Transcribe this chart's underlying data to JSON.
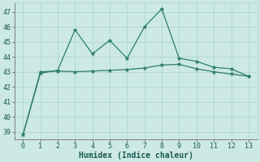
{
  "x": [
    0,
    1,
    2,
    3,
    4,
    5,
    6,
    7,
    8,
    9,
    10,
    11,
    12,
    13
  ],
  "line1_y": [
    38.8,
    42.9,
    43.1,
    45.8,
    44.2,
    45.1,
    43.9,
    46.0,
    47.2,
    43.9,
    43.7,
    43.3,
    43.2,
    42.7
  ],
  "line2_y": [
    38.8,
    43.0,
    43.05,
    43.0,
    43.05,
    43.1,
    43.15,
    43.25,
    43.45,
    43.5,
    43.2,
    43.0,
    42.85,
    42.7
  ],
  "line_color": "#2e7d6e",
  "bg_color": "#cce9e5",
  "grid_color": "#b0d5d0",
  "xlabel": "Humidex (Indice chaleur)",
  "ylim": [
    38.5,
    47.6
  ],
  "xlim": [
    -0.5,
    13.5
  ],
  "yticks": [
    39,
    40,
    41,
    42,
    43,
    44,
    45,
    46,
    47
  ],
  "xticks": [
    0,
    1,
    2,
    3,
    4,
    5,
    6,
    7,
    8,
    9,
    10,
    11,
    12,
    13
  ],
  "font_color": "#1a5a50",
  "marker": "*",
  "markersize": 3.5,
  "linewidth": 0.9,
  "tick_fontsize": 6,
  "xlabel_fontsize": 7
}
